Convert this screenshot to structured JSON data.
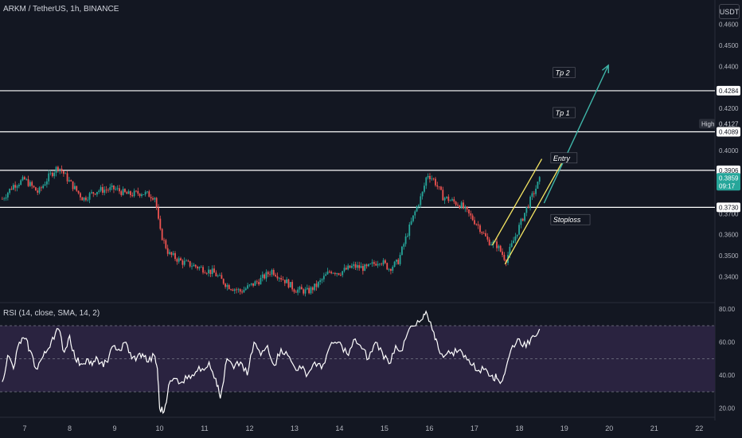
{
  "header": {
    "symbol_label": "ARKM / TetherUS, 1h, BINANCE",
    "currency_button": "USDT"
  },
  "colors": {
    "background": "#131722",
    "up": "#26a69a",
    "down": "#ef5350",
    "hline": "#ffffff",
    "channel": "#f5e663",
    "arrow": "#3fb5a8",
    "rsi_band": "#2a2340"
  },
  "chart_data": [
    {
      "type": "candlestick",
      "title": "ARKM / TetherUS, 1h, BINANCE",
      "ylim": [
        0.3285,
        0.4715
      ],
      "y_ticks": [
        "0.4600",
        "0.4500",
        "0.4400",
        "0.4200",
        "0.4000",
        "0.3700",
        "0.3600",
        "0.3500",
        "0.3400"
      ],
      "x_ticks": [
        "7",
        "8",
        "9",
        "10",
        "11",
        "12",
        "13",
        "14",
        "15",
        "16",
        "17",
        "18",
        "19",
        "20",
        "21",
        "22"
      ],
      "x_tick_values": [
        7,
        8,
        9,
        10,
        11,
        12,
        13,
        14,
        15,
        16,
        17,
        18,
        19,
        20,
        21,
        22
      ],
      "xlim": [
        6.45,
        22.35
      ],
      "series": [
        {
          "values": [
            [
              6.5,
              0.377
            ],
            [
              6.75,
              0.3835
            ],
            [
              7.0,
              0.3862
            ],
            [
              7.3,
              0.38
            ],
            [
              7.55,
              0.388
            ],
            [
              7.75,
              0.3925
            ],
            [
              8.0,
              0.385
            ],
            [
              8.3,
              0.377
            ],
            [
              8.6,
              0.381
            ],
            [
              9.0,
              0.3818
            ],
            [
              9.3,
              0.379
            ],
            [
              9.6,
              0.38
            ],
            [
              9.9,
              0.378
            ],
            [
              10.0,
              0.362
            ],
            [
              10.2,
              0.351
            ],
            [
              10.5,
              0.347
            ],
            [
              10.8,
              0.345
            ],
            [
              11.2,
              0.342
            ],
            [
              11.5,
              0.336
            ],
            [
              11.8,
              0.333
            ],
            [
              12.2,
              0.338
            ],
            [
              12.5,
              0.343
            ],
            [
              12.8,
              0.338
            ],
            [
              13.0,
              0.334
            ],
            [
              13.3,
              0.333
            ],
            [
              13.5,
              0.336
            ],
            [
              13.8,
              0.343
            ],
            [
              14.0,
              0.342
            ],
            [
              14.3,
              0.345
            ],
            [
              14.6,
              0.344
            ],
            [
              14.9,
              0.348
            ],
            [
              15.1,
              0.344
            ],
            [
              15.3,
              0.347
            ],
            [
              15.5,
              0.36
            ],
            [
              15.7,
              0.372
            ],
            [
              15.85,
              0.38
            ],
            [
              15.95,
              0.389
            ],
            [
              16.1,
              0.386
            ],
            [
              16.3,
              0.378
            ],
            [
              16.5,
              0.376
            ],
            [
              16.7,
              0.374
            ],
            [
              16.9,
              0.369
            ],
            [
              17.1,
              0.364
            ],
            [
              17.3,
              0.357
            ],
            [
              17.5,
              0.355
            ],
            [
              17.7,
              0.348
            ],
            [
              17.85,
              0.356
            ],
            [
              18.0,
              0.364
            ],
            [
              18.15,
              0.372
            ],
            [
              18.3,
              0.379
            ],
            [
              18.45,
              0.3859
            ]
          ]
        }
      ],
      "last_price": 0.3859,
      "countdown": "09:17",
      "high_label": "High",
      "high_value": "0.4127",
      "horizontal_levels": [
        {
          "value": 0.4284,
          "label": "0.4284"
        },
        {
          "value": 0.4089,
          "label": "0.4089"
        },
        {
          "value": 0.3906,
          "label": "0.3906"
        },
        {
          "value": 0.373,
          "label": "0.3730"
        }
      ],
      "annotations": [
        {
          "text": "Tp 2",
          "x": 18.75,
          "y": 0.4368
        },
        {
          "text": "Tp 1",
          "x": 18.75,
          "y": 0.4178
        },
        {
          "text": "Entry",
          "x": 18.7,
          "y": 0.3963
        },
        {
          "text": "Stoploss",
          "x": 18.7,
          "y": 0.367
        }
      ],
      "channel": {
        "upper": [
          [
            17.4,
            0.355
          ],
          [
            18.5,
            0.396
          ]
        ],
        "lower": [
          [
            17.68,
            0.346
          ],
          [
            18.98,
            0.3955
          ]
        ]
      },
      "projection_arrow": [
        [
          18.55,
          0.375
        ],
        [
          19.98,
          0.4405
        ]
      ]
    },
    {
      "type": "line",
      "title": "RSI (14, close, SMA, 14, 2)",
      "ylim": [
        16.5,
        83
      ],
      "y_ticks": [
        "80.00",
        "60.00",
        "40.00",
        "20.00"
      ],
      "y_tick_values": [
        80,
        60,
        40,
        20
      ],
      "bands": {
        "upper": 70,
        "middle": 50,
        "lower": 30
      },
      "series": [
        {
          "name": "RSI",
          "values": [
            [
              6.5,
              36
            ],
            [
              6.62,
              52
            ],
            [
              6.75,
              44
            ],
            [
              6.88,
              60
            ],
            [
              7.0,
              62
            ],
            [
              7.12,
              55
            ],
            [
              7.25,
              44
            ],
            [
              7.38,
              50
            ],
            [
              7.5,
              55
            ],
            [
              7.62,
              63
            ],
            [
              7.75,
              68
            ],
            [
              7.88,
              54
            ],
            [
              8.0,
              64
            ],
            [
              8.12,
              50
            ],
            [
              8.25,
              47
            ],
            [
              8.38,
              50
            ],
            [
              8.5,
              46
            ],
            [
              8.62,
              50
            ],
            [
              8.75,
              45
            ],
            [
              8.88,
              52
            ],
            [
              9.0,
              58
            ],
            [
              9.12,
              55
            ],
            [
              9.25,
              60
            ],
            [
              9.38,
              50
            ],
            [
              9.5,
              51
            ],
            [
              9.62,
              53
            ],
            [
              9.75,
              48
            ],
            [
              9.88,
              52
            ],
            [
              9.95,
              44
            ],
            [
              10.0,
              20
            ],
            [
              10.1,
              18
            ],
            [
              10.2,
              34
            ],
            [
              10.35,
              38
            ],
            [
              10.5,
              36
            ],
            [
              10.65,
              40
            ],
            [
              10.8,
              42
            ],
            [
              10.95,
              44
            ],
            [
              11.1,
              48
            ],
            [
              11.25,
              38
            ],
            [
              11.35,
              26
            ],
            [
              11.5,
              50
            ],
            [
              11.65,
              44
            ],
            [
              11.8,
              48
            ],
            [
              11.95,
              40
            ],
            [
              12.1,
              60
            ],
            [
              12.25,
              52
            ],
            [
              12.4,
              58
            ],
            [
              12.55,
              46
            ],
            [
              12.7,
              56
            ],
            [
              12.85,
              52
            ],
            [
              13.0,
              45
            ],
            [
              13.15,
              44
            ],
            [
              13.3,
              41
            ],
            [
              13.45,
              48
            ],
            [
              13.6,
              44
            ],
            [
              13.75,
              55
            ],
            [
              13.9,
              60
            ],
            [
              14.05,
              58
            ],
            [
              14.2,
              52
            ],
            [
              14.35,
              62
            ],
            [
              14.5,
              56
            ],
            [
              14.65,
              50
            ],
            [
              14.8,
              60
            ],
            [
              14.95,
              54
            ],
            [
              15.1,
              47
            ],
            [
              15.25,
              58
            ],
            [
              15.4,
              55
            ],
            [
              15.55,
              68
            ],
            [
              15.7,
              70
            ],
            [
              15.85,
              74
            ],
            [
              15.95,
              77
            ],
            [
              16.1,
              66
            ],
            [
              16.2,
              56
            ],
            [
              16.35,
              52
            ],
            [
              16.5,
              54
            ],
            [
              16.65,
              55
            ],
            [
              16.8,
              52
            ],
            [
              16.95,
              46
            ],
            [
              17.1,
              43
            ],
            [
              17.25,
              44
            ],
            [
              17.4,
              40
            ],
            [
              17.5,
              38
            ],
            [
              17.6,
              36
            ],
            [
              17.7,
              44
            ],
            [
              17.85,
              58
            ],
            [
              18.0,
              62
            ],
            [
              18.15,
              57
            ],
            [
              18.3,
              64
            ],
            [
              18.45,
              68
            ]
          ]
        }
      ]
    }
  ]
}
